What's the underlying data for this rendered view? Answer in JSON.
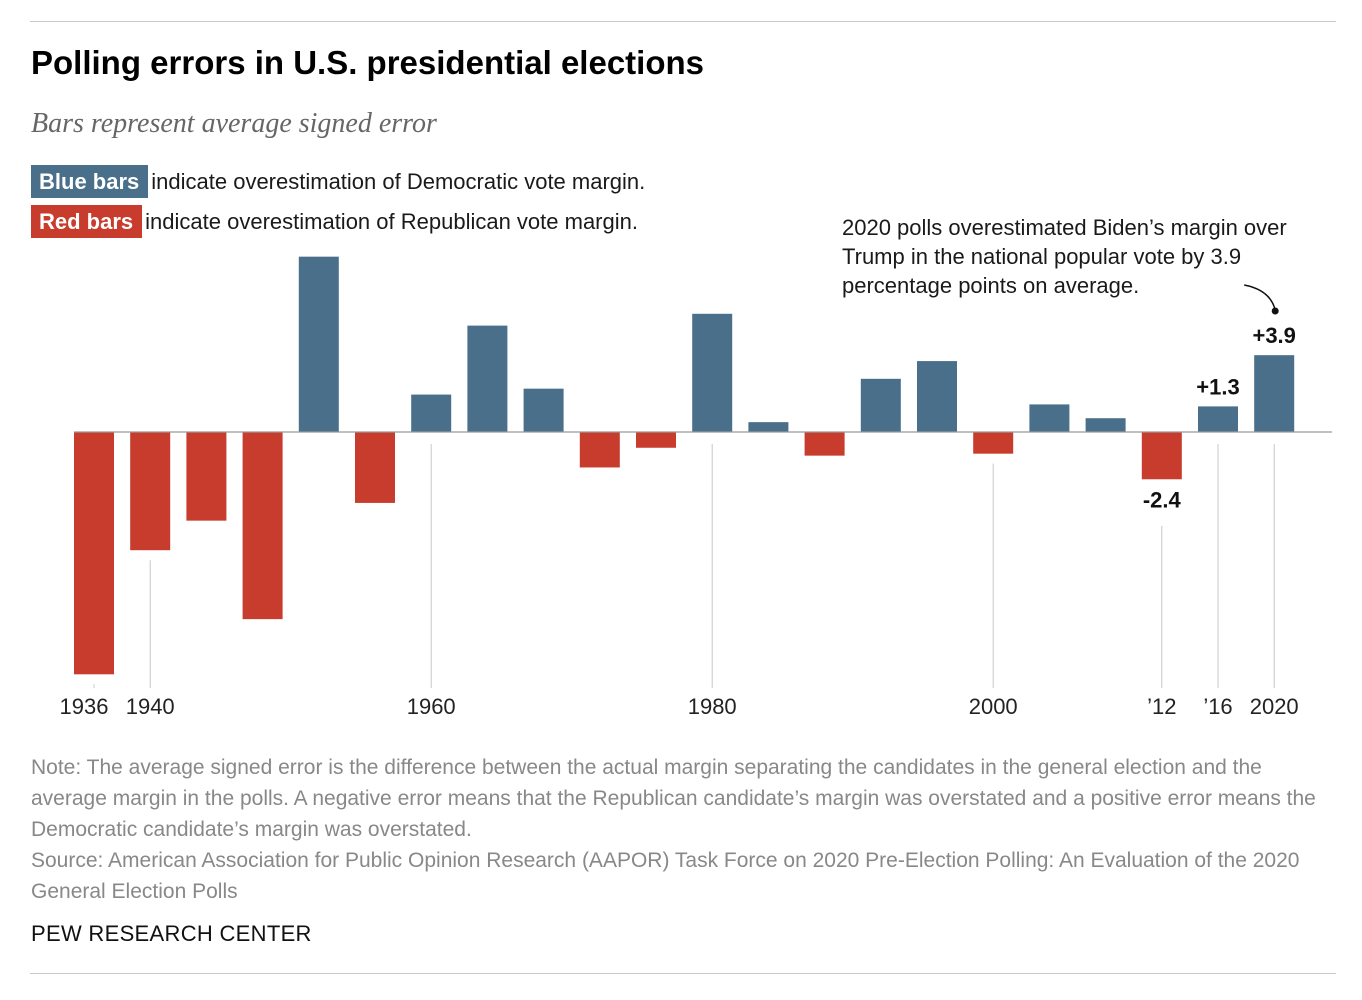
{
  "title": "Polling errors in U.S. presidential elections",
  "subtitle": "Bars represent average signed error",
  "legend": {
    "blue": {
      "label": "Blue bars",
      "text": "indicate overestimation of Democratic vote margin.",
      "color": "#4a6f8a"
    },
    "red": {
      "label": "Red bars",
      "text": "indicate overestimation of Republican vote margin.",
      "color": "#c83c2d"
    }
  },
  "annotation": "2020 polls overestimated Biden’s margin over Trump in the national popular vote by 3.9 percentage points on average.",
  "chart_data": {
    "type": "bar",
    "categories": [
      1936,
      1940,
      1944,
      1948,
      1952,
      1956,
      1960,
      1964,
      1968,
      1972,
      1976,
      1980,
      1984,
      1988,
      1992,
      1996,
      2000,
      2004,
      2008,
      2012,
      2016,
      2020
    ],
    "values": [
      -12.3,
      -6.0,
      -4.5,
      -9.5,
      8.9,
      -3.6,
      1.9,
      5.4,
      2.2,
      -1.8,
      -0.8,
      6.0,
      0.5,
      -1.2,
      2.7,
      3.6,
      -1.1,
      1.4,
      0.7,
      -2.4,
      1.3,
      3.9
    ],
    "data_labels": [
      {
        "year": 2012,
        "text": "-2.4"
      },
      {
        "year": 2016,
        "text": "+1.3"
      },
      {
        "year": 2020,
        "text": "+3.9"
      }
    ],
    "tick_labels": [
      {
        "year": 1936,
        "text": "1936"
      },
      {
        "year": 1940,
        "text": "1940"
      },
      {
        "year": 1960,
        "text": "1960"
      },
      {
        "year": 1980,
        "text": "1980"
      },
      {
        "year": 2000,
        "text": "2000"
      },
      {
        "year": 2012,
        "text": "'12"
      },
      {
        "year": 2016,
        "text": "'16"
      },
      {
        "year": 2020,
        "text": "2020"
      }
    ],
    "ylim": [
      -13.1,
      9.5
    ],
    "grid": false,
    "colors": {
      "positive": "#4a6f8a",
      "negative": "#c83c2d",
      "guide": "#c8c8c8",
      "axis": "#999999"
    }
  },
  "note": "Note: The average signed error is the difference between the actual margin separating the candidates in the general election and the average margin in the polls. A negative error means that the Republican candidate’s margin was overstated and a positive error means the Democratic candidate’s margin was overstated.",
  "source": "Source: American Association for Public Opinion Research (AAPOR) Task Force on 2020 Pre-Election Polling: An Evaluation of the 2020 General Election Polls",
  "brand": "PEW RESEARCH CENTER"
}
